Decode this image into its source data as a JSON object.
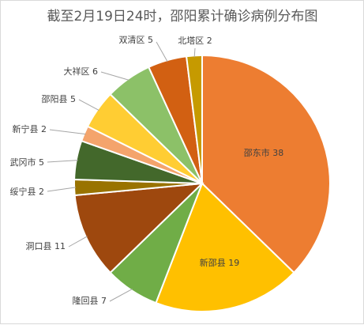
{
  "chart_data": {
    "type": "pie",
    "title": "截至2月19日24时，邵阳累计确诊病例分布图",
    "slices": [
      {
        "name": "邵东市",
        "value": 38,
        "color": "#ED7D31",
        "label": "邵东市 38",
        "placement": "inside"
      },
      {
        "name": "新邵县",
        "value": 19,
        "color": "#FFC000",
        "label": "新邵县 19",
        "placement": "inside"
      },
      {
        "name": "隆回县",
        "value": 7,
        "color": "#70AD47",
        "label": "隆回县 7",
        "placement": "outside"
      },
      {
        "name": "洞口县",
        "value": 11,
        "color": "#9E480E",
        "label": "洞口县 11",
        "placement": "outside"
      },
      {
        "name": "绥宁县",
        "value": 2,
        "color": "#997300",
        "label": "绥宁县 2",
        "placement": "outside"
      },
      {
        "name": "武冈市",
        "value": 5,
        "color": "#43682B",
        "label": "武冈市 5",
        "placement": "outside"
      },
      {
        "name": "新宁县",
        "value": 2,
        "color": "#F4A46C",
        "label": "新宁县 2",
        "placement": "outside"
      },
      {
        "name": "邵阳县",
        "value": 5,
        "color": "#FFCD33",
        "label": "邵阳县 5",
        "placement": "outside"
      },
      {
        "name": "大祥区",
        "value": 6,
        "color": "#8CC168",
        "label": "大祥区 6",
        "placement": "outside"
      },
      {
        "name": "双清区",
        "value": 5,
        "color": "#D26012",
        "label": "双清区 5",
        "placement": "outside"
      },
      {
        "name": "北塔区",
        "value": 2,
        "color": "#C69A00",
        "label": "北塔区 2",
        "placement": "outside"
      }
    ]
  }
}
